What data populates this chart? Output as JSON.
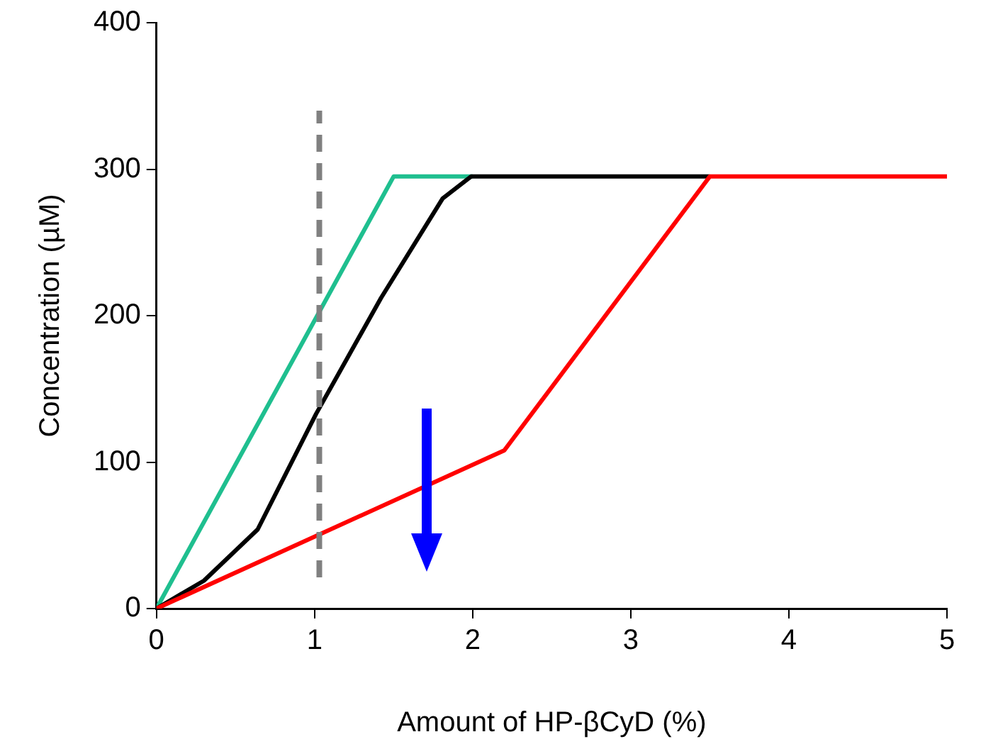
{
  "chart_data": {
    "type": "line",
    "xlabel": "Amount of HP-βCyD (%)",
    "ylabel": "Concentration (µM)",
    "xlim": [
      0,
      5
    ],
    "ylim": [
      0,
      400
    ],
    "xticks": [
      0,
      1,
      2,
      3,
      4,
      5
    ],
    "yticks": [
      0,
      100,
      200,
      300,
      400
    ],
    "grid": false,
    "legend": false,
    "marker": "none",
    "line_style": "solid",
    "series": [
      {
        "color": "#1fbf8f",
        "x": [
          0,
          1.5,
          2
        ],
        "values": [
          0,
          295,
          295
        ]
      },
      {
        "color": "#000000",
        "x": [
          0,
          0.3,
          0.64,
          1.01,
          1.42,
          1.81,
          1.99,
          3.5
        ],
        "values": [
          0,
          19,
          54,
          133,
          212,
          280,
          295,
          295
        ]
      },
      {
        "color": "#ff0000",
        "x": [
          0,
          2.2,
          3.5,
          5
        ],
        "values": [
          0,
          108,
          295,
          295
        ]
      }
    ],
    "ref_lines": [
      {
        "axis": "x",
        "value": 1.03,
        "color": "#808080",
        "line_style": "dashed"
      }
    ]
  }
}
